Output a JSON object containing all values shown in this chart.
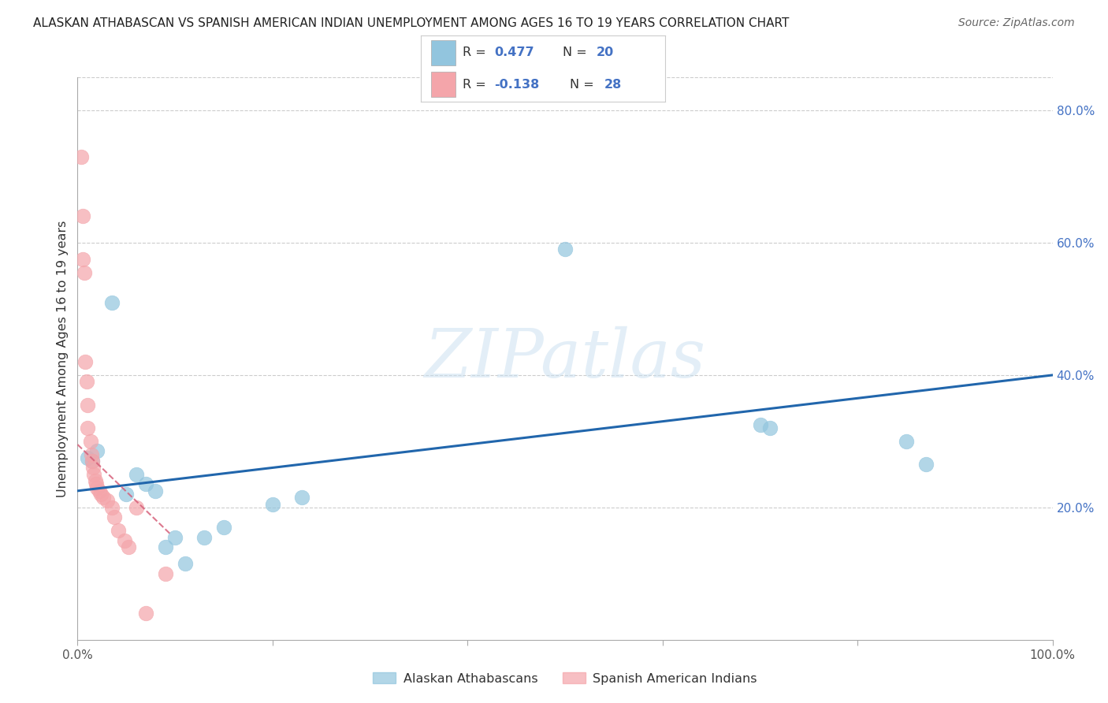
{
  "title": "ALASKAN ATHABASCAN VS SPANISH AMERICAN INDIAN UNEMPLOYMENT AMONG AGES 16 TO 19 YEARS CORRELATION CHART",
  "source": "Source: ZipAtlas.com",
  "ylabel": "Unemployment Among Ages 16 to 19 years",
  "xlim": [
    0.0,
    1.0
  ],
  "ylim": [
    0.0,
    0.85
  ],
  "ytick_vals_right": [
    0.2,
    0.4,
    0.6,
    0.8
  ],
  "ytick_labels_right": [
    "20.0%",
    "40.0%",
    "60.0%",
    "80.0%"
  ],
  "blue_color": "#92c5de",
  "pink_color": "#f4a5aa",
  "blue_line_color": "#2166ac",
  "pink_line_color": "#d6607a",
  "blue_scatter_x": [
    0.01,
    0.015,
    0.02,
    0.035,
    0.05,
    0.06,
    0.07,
    0.08,
    0.09,
    0.1,
    0.11,
    0.13,
    0.15,
    0.2,
    0.23,
    0.5,
    0.7,
    0.71,
    0.85,
    0.87
  ],
  "blue_scatter_y": [
    0.275,
    0.27,
    0.285,
    0.51,
    0.22,
    0.25,
    0.235,
    0.225,
    0.14,
    0.155,
    0.115,
    0.155,
    0.17,
    0.205,
    0.215,
    0.59,
    0.325,
    0.32,
    0.3,
    0.265
  ],
  "pink_scatter_x": [
    0.004,
    0.005,
    0.005,
    0.007,
    0.008,
    0.009,
    0.01,
    0.01,
    0.013,
    0.014,
    0.015,
    0.016,
    0.017,
    0.018,
    0.019,
    0.02,
    0.022,
    0.024,
    0.026,
    0.03,
    0.035,
    0.038,
    0.042,
    0.048,
    0.052,
    0.06,
    0.07,
    0.09
  ],
  "pink_scatter_y": [
    0.73,
    0.64,
    0.575,
    0.555,
    0.42,
    0.39,
    0.355,
    0.32,
    0.3,
    0.28,
    0.27,
    0.26,
    0.25,
    0.24,
    0.235,
    0.23,
    0.225,
    0.22,
    0.215,
    0.21,
    0.2,
    0.185,
    0.165,
    0.15,
    0.14,
    0.2,
    0.04,
    0.1
  ],
  "blue_line_x0": 0.0,
  "blue_line_y0": 0.225,
  "blue_line_x1": 1.0,
  "blue_line_y1": 0.4,
  "pink_line_x0": 0.0,
  "pink_line_y0": 0.295,
  "pink_line_x1": 0.095,
  "pink_line_y1": 0.16,
  "legend_label_blue": "Alaskan Athabascans",
  "legend_label_pink": "Spanish American Indians",
  "watermark": "ZIPatlas",
  "background_color": "#ffffff",
  "grid_color": "#cccccc",
  "blue_R": "0.477",
  "blue_N": "20",
  "pink_R": "-0.138",
  "pink_N": "28"
}
